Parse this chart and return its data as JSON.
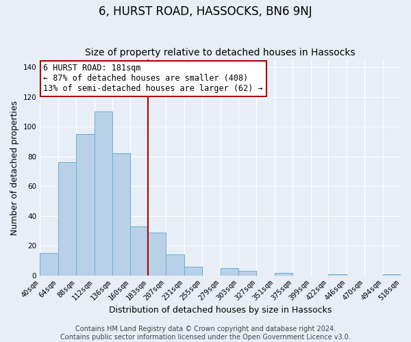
{
  "title": "6, HURST ROAD, HASSOCKS, BN6 9NJ",
  "subtitle": "Size of property relative to detached houses in Hassocks",
  "xlabel": "Distribution of detached houses by size in Hassocks",
  "ylabel": "Number of detached properties",
  "bar_color": "#b8d0e8",
  "bar_edge_color": "#6aaed6",
  "background_color": "#e8eef5",
  "grid_color": "#ffffff",
  "vline_x": 183,
  "vline_color": "#aa0000",
  "annotation_box_color": "#aa0000",
  "annotation_lines": [
    "6 HURST ROAD: 181sqm",
    "← 87% of detached houses are smaller (408)",
    "13% of semi-detached houses are larger (62) →"
  ],
  "bin_edges": [
    40,
    64,
    88,
    112,
    136,
    160,
    183,
    207,
    231,
    255,
    279,
    303,
    327,
    351,
    375,
    399,
    422,
    446,
    470,
    494,
    518
  ],
  "bin_heights": [
    15,
    76,
    95,
    110,
    82,
    33,
    29,
    14,
    6,
    0,
    5,
    3,
    0,
    2,
    0,
    0,
    1,
    0,
    0,
    1
  ],
  "tick_labels": [
    "40sqm",
    "64sqm",
    "88sqm",
    "112sqm",
    "136sqm",
    "160sqm",
    "183sqm",
    "207sqm",
    "231sqm",
    "255sqm",
    "279sqm",
    "303sqm",
    "327sqm",
    "351sqm",
    "375sqm",
    "399sqm",
    "422sqm",
    "446sqm",
    "470sqm",
    "494sqm",
    "518sqm"
  ],
  "ylim": [
    0,
    145
  ],
  "yticks": [
    0,
    20,
    40,
    60,
    80,
    100,
    120,
    140
  ],
  "footer_lines": [
    "Contains HM Land Registry data © Crown copyright and database right 2024.",
    "Contains public sector information licensed under the Open Government Licence v3.0."
  ],
  "footer_fontsize": 7,
  "title_fontsize": 12,
  "subtitle_fontsize": 10,
  "axis_label_fontsize": 9,
  "tick_fontsize": 7.5,
  "annotation_fontsize": 8.5
}
